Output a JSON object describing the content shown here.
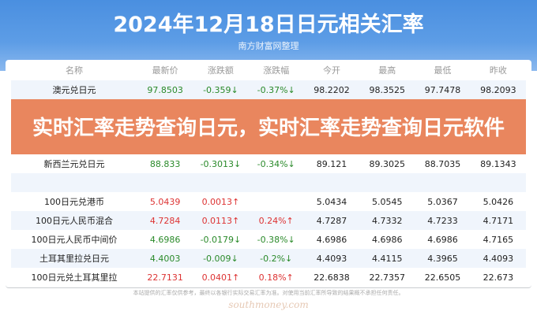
{
  "header": {
    "title": "2024年12月18日日元相关汇率",
    "subtitle": "南方财富网整理"
  },
  "table": {
    "columns": [
      "名称",
      "最新价",
      "涨跌额",
      "涨跌幅",
      "今开",
      "最高",
      "最低",
      "昨收"
    ],
    "rows": [
      {
        "name": "澳元兑日元",
        "price": "97.8503",
        "change": "-0.359↓",
        "pct": "-0.37%↓",
        "open": "98.2202",
        "high": "98.3525",
        "low": "97.7478",
        "prev": "98.2093",
        "trend": "down"
      },
      {
        "name": "新西兰元兑日元",
        "price": "88.833",
        "change": "-0.3013↓",
        "pct": "-0.34%↓",
        "open": "89.121",
        "high": "89.3025",
        "low": "88.7035",
        "prev": "89.1343",
        "trend": "down"
      },
      {
        "name": "",
        "price": "",
        "change": "",
        "pct": "",
        "open": "",
        "high": "",
        "low": "",
        "prev": "",
        "trend": "up"
      },
      {
        "name": "100日元兑港币",
        "price": "5.0439",
        "change": "0.0013↑",
        "pct": "",
        "open": "5.0434",
        "high": "5.0545",
        "low": "5.0367",
        "prev": "5.0426",
        "trend": "up"
      },
      {
        "name": "100日元人民币混合",
        "price": "4.7284",
        "change": "0.0113↑",
        "pct": "0.24%↑",
        "open": "4.7287",
        "high": "4.7332",
        "low": "4.7233",
        "prev": "4.7171",
        "trend": "up"
      },
      {
        "name": "100日元人民币中间价",
        "price": "4.6986",
        "change": "-0.0179↓",
        "pct": "-0.38%↓",
        "open": "4.6986",
        "high": "4.6986",
        "low": "4.6986",
        "prev": "4.7165",
        "trend": "down"
      },
      {
        "name": "土耳其里拉兑日元",
        "price": "4.4003",
        "change": "-0.009↓",
        "pct": "-0.2%↓",
        "open": "4.4093",
        "high": "4.4115",
        "low": "4.3965",
        "prev": "4.4093",
        "trend": "down"
      },
      {
        "name": "100日元兑土耳其里拉",
        "price": "22.7131",
        "change": "0.0401↑",
        "pct": "0.18%↑",
        "open": "22.6838",
        "high": "22.7357",
        "low": "22.6505",
        "prev": "22.673",
        "trend": "up"
      }
    ]
  },
  "watermark": "southmoney.com",
  "footer": "本站提供的汇率仅供参考，最终以各银行实际交易汇率为准。对使用当前汇率所导致的结果概不承担任何责任。",
  "overlay_title": "实时汇率走势查询日元，实时汇率走势查询日元软件"
}
